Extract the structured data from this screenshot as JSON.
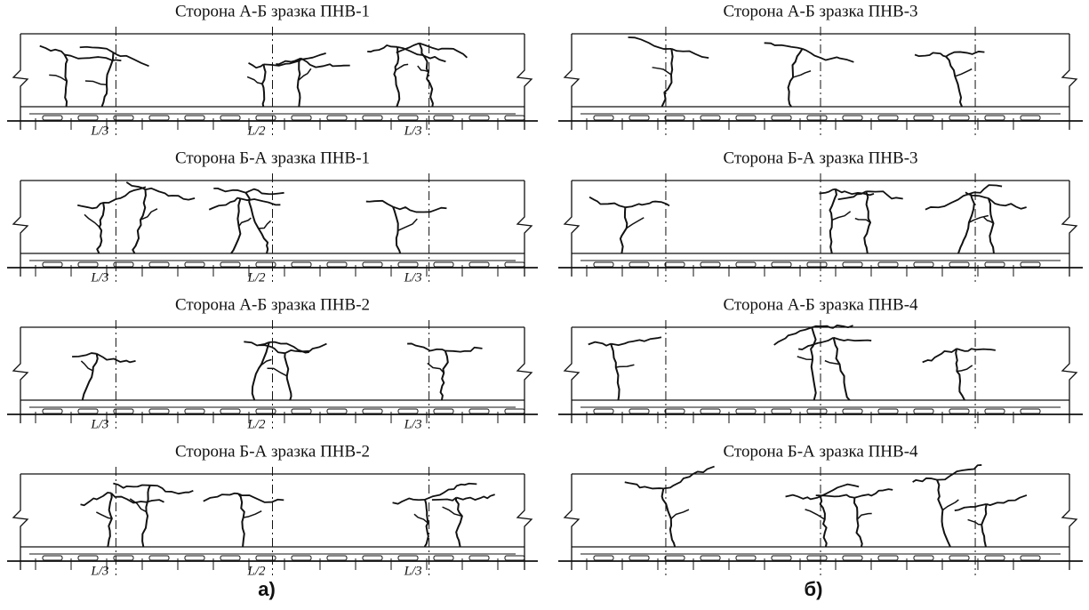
{
  "column_a": {
    "label": "а)",
    "panels": [
      {
        "title": "Сторона А-Б зразка ПНВ-1",
        "marks": [
          "L/3",
          "L/2",
          "L/3"
        ]
      },
      {
        "title": "Сторона Б-А зразка ПНВ-1",
        "marks": [
          "L/3",
          "L/2",
          "L/3"
        ]
      },
      {
        "title": "Сторона А-Б зразка ПНВ-2",
        "marks": [
          "L/3",
          "L/2",
          "L/3"
        ]
      },
      {
        "title": "Сторона Б-А зразка ПНВ-2",
        "marks": [
          "L/3",
          "L/2",
          "L/3"
        ]
      }
    ]
  },
  "column_b": {
    "label": "б)",
    "panels": [
      {
        "title": "Сторона А-Б зразка ПНВ-3"
      },
      {
        "title": "Сторона Б-А зразка ПНВ-3"
      },
      {
        "title": "Сторона А-Б зразка ПНВ-4"
      },
      {
        "title": "Сторона Б-А зразка ПНВ-4"
      }
    ]
  }
}
